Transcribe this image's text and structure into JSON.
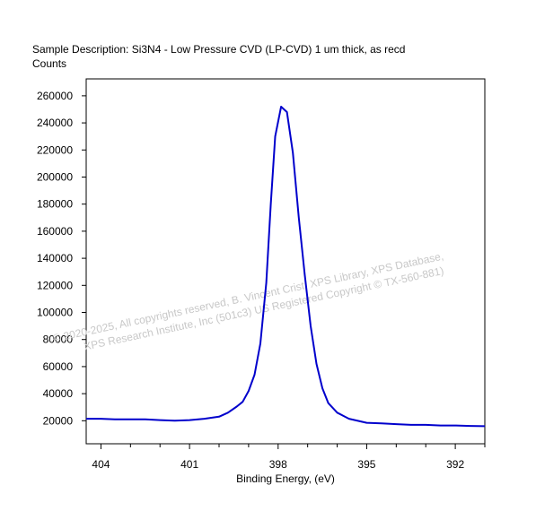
{
  "chart_data": {
    "type": "line",
    "title": "Sample Description:  Si3N4 - Low Pressure CVD (LP-CVD) 1 um thick, as recd",
    "ylabel": "Counts",
    "xlabel": "Binding Energy, (eV)",
    "x_reversed": true,
    "xlim": [
      404.5,
      391.0
    ],
    "ylim": [
      3000,
      272500
    ],
    "x_ticks": [
      404,
      401,
      398,
      395,
      392
    ],
    "x_minor_step": 1,
    "y_ticks": [
      20000,
      40000,
      60000,
      80000,
      100000,
      120000,
      140000,
      160000,
      180000,
      200000,
      220000,
      240000,
      260000
    ],
    "grid": false,
    "line_color": "#0000cc",
    "series": [
      {
        "x": [
          404.5,
          404.0,
          403.5,
          403.0,
          402.5,
          402.0,
          401.5,
          401.0,
          400.5,
          400.0,
          399.7,
          399.4,
          399.2,
          399.0,
          398.8,
          398.6,
          398.4,
          398.25,
          398.1,
          397.9,
          397.7,
          397.5,
          397.3,
          397.1,
          396.9,
          396.7,
          396.5,
          396.3,
          396.0,
          395.6,
          395.0,
          394.5,
          394.0,
          393.5,
          393.0,
          392.5,
          392.0,
          391.5,
          391.0
        ],
        "y": [
          21500,
          21500,
          21000,
          21000,
          21000,
          20500,
          20000,
          20500,
          21500,
          23000,
          26000,
          30500,
          34000,
          42000,
          54000,
          77000,
          122000,
          180000,
          230000,
          252000,
          248000,
          218000,
          170000,
          128000,
          90000,
          62000,
          44000,
          33000,
          26000,
          21500,
          18500,
          18000,
          17500,
          17000,
          17000,
          16500,
          16500,
          16200,
          16000
        ]
      }
    ],
    "watermark": [
      "© 2020-2025,  All copyrights reserved,    B. Vincent Crist,  XPS Library, XPS Database,",
      "XPS Research Institute, Inc (501c3)     US Registered Copyright © TX-560-881)"
    ]
  }
}
